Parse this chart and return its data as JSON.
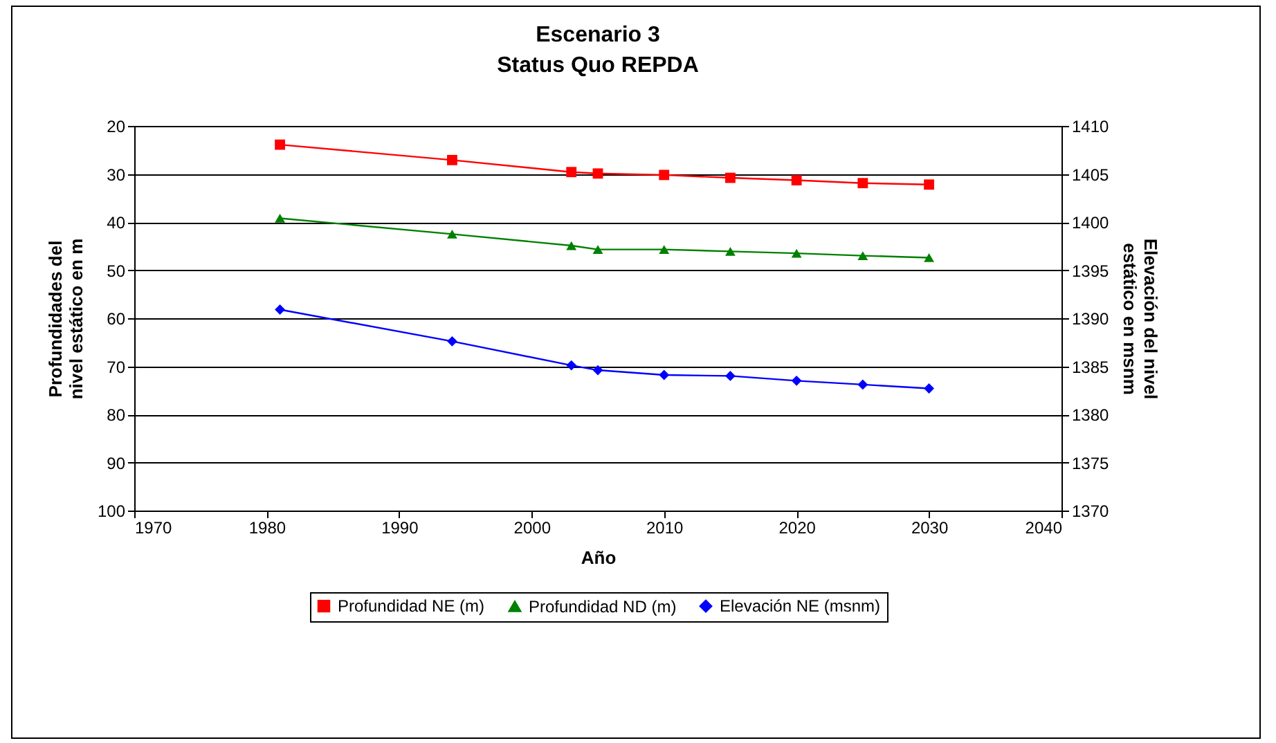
{
  "chart_data": {
    "type": "line",
    "title": "Escenario 3",
    "subtitle": "Status Quo REPDA",
    "xlabel": "Año",
    "ylabel": "Profundidades del\nnivel estático en m",
    "y2label": "Elevación del nivel\nestático  en msnm",
    "x": [
      1981,
      1994,
      2003,
      2005,
      2010,
      2015,
      2020,
      2025,
      2030
    ],
    "xlim": [
      1970,
      2040
    ],
    "xticks": [
      1970,
      1980,
      1990,
      2000,
      2010,
      2020,
      2030,
      2040
    ],
    "ylim": [
      100,
      20
    ],
    "yticks": [
      20,
      30,
      40,
      50,
      60,
      70,
      80,
      90,
      100
    ],
    "y2lim": [
      1370,
      1410
    ],
    "y2ticks": [
      1370,
      1375,
      1380,
      1385,
      1390,
      1395,
      1400,
      1405,
      1410
    ],
    "grid": "y",
    "legend": "bottom",
    "series": [
      {
        "name": "Profundidad NE (m)",
        "color": "#ff0000",
        "marker": "square",
        "values": [
          23.9,
          27.1,
          29.6,
          29.9,
          30.2,
          30.8,
          31.3,
          31.9,
          32.2
        ]
      },
      {
        "name": "Profundidad ND (m)",
        "color": "#008000",
        "marker": "triangle",
        "values": [
          39.2,
          42.5,
          44.9,
          45.7,
          45.7,
          46.1,
          46.5,
          47.0,
          47.4
        ]
      },
      {
        "name": "Elevación NE (msnm)",
        "color": "#0000ff",
        "marker": "diamond",
        "axis": "y2",
        "values": [
          1390.9,
          1387.6,
          1385.1,
          1384.6,
          1384.1,
          1384.0,
          1383.5,
          1383.1,
          1382.7
        ]
      }
    ]
  }
}
